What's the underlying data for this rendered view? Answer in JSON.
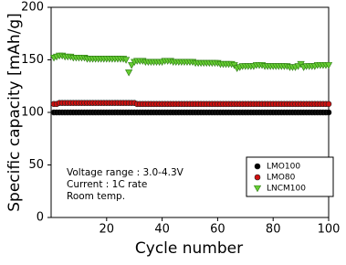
{
  "chart_data": {
    "type": "scatter",
    "xlabel": "Cycle number",
    "ylabel": "Specific capacity [mAh/g]",
    "annotations": [
      "Voltage range : 3.0-4.3V",
      "Current : 1C rate",
      "Room temp."
    ],
    "xlim": [
      0,
      100
    ],
    "xticks": [
      20,
      40,
      60,
      80,
      100
    ],
    "ylim": [
      0,
      200
    ],
    "yticks": [
      0,
      50,
      100,
      150,
      200
    ],
    "legend": "lower right",
    "x": [
      1,
      2,
      3,
      4,
      5,
      6,
      7,
      8,
      9,
      10,
      11,
      12,
      13,
      14,
      15,
      16,
      17,
      18,
      19,
      20,
      21,
      22,
      23,
      24,
      25,
      26,
      27,
      28,
      29,
      30,
      31,
      32,
      33,
      34,
      35,
      36,
      37,
      38,
      39,
      40,
      41,
      42,
      43,
      44,
      45,
      46,
      47,
      48,
      49,
      50,
      51,
      52,
      53,
      54,
      55,
      56,
      57,
      58,
      59,
      60,
      61,
      62,
      63,
      64,
      65,
      66,
      67,
      68,
      69,
      70,
      71,
      72,
      73,
      74,
      75,
      76,
      77,
      78,
      79,
      80,
      81,
      82,
      83,
      84,
      85,
      86,
      87,
      88,
      89,
      90,
      91,
      92,
      93,
      94,
      95,
      96,
      97,
      98,
      99,
      100
    ],
    "series": [
      {
        "name": "LMO100",
        "color": "#000000",
        "marker": "circle",
        "values": [
          100,
          100,
          100,
          100,
          100,
          100,
          100,
          100,
          100,
          100,
          100,
          100,
          100,
          100,
          100,
          100,
          100,
          100,
          100,
          100,
          100,
          100,
          100,
          100,
          100,
          100,
          100,
          100,
          100,
          100,
          100,
          100,
          100,
          100,
          100,
          100,
          100,
          100,
          100,
          100,
          100,
          100,
          100,
          100,
          100,
          100,
          100,
          100,
          100,
          100,
          100,
          100,
          100,
          100,
          100,
          100,
          100,
          100,
          100,
          100,
          100,
          100,
          100,
          100,
          100,
          100,
          100,
          100,
          100,
          100,
          100,
          100,
          100,
          100,
          100,
          100,
          100,
          100,
          100,
          100,
          100,
          100,
          100,
          100,
          100,
          100,
          100,
          100,
          100,
          100,
          100,
          100,
          100,
          100,
          100,
          100,
          100,
          100,
          100,
          100
        ]
      },
      {
        "name": "LMO80",
        "color": "#d01010",
        "marker": "circle",
        "values": [
          108,
          108,
          109,
          109,
          109,
          109,
          109,
          109,
          109,
          109,
          109,
          109,
          109,
          109,
          109,
          109,
          109,
          109,
          109,
          109,
          109,
          109,
          109,
          109,
          109,
          109,
          109,
          109,
          109,
          109,
          108,
          108,
          108,
          108,
          108,
          108,
          108,
          108,
          108,
          108,
          108,
          108,
          108,
          108,
          108,
          108,
          108,
          108,
          108,
          108,
          108,
          108,
          108,
          108,
          108,
          108,
          108,
          108,
          108,
          108,
          108,
          108,
          108,
          108,
          108,
          108,
          108,
          108,
          108,
          108,
          108,
          108,
          108,
          108,
          108,
          108,
          108,
          108,
          108,
          108,
          108,
          108,
          108,
          108,
          108,
          108,
          108,
          108,
          108,
          108,
          108,
          108,
          108,
          108,
          108,
          108,
          108,
          108,
          108,
          108
        ]
      },
      {
        "name": "LNCM100",
        "color": "#66cc33",
        "marker": "triangle-down",
        "values": [
          152,
          153,
          154,
          154,
          153,
          153,
          153,
          152,
          152,
          152,
          152,
          152,
          151,
          151,
          151,
          151,
          151,
          151,
          151,
          151,
          151,
          151,
          151,
          151,
          151,
          151,
          150,
          138,
          145,
          148,
          149,
          149,
          149,
          148,
          148,
          148,
          148,
          148,
          148,
          148,
          149,
          149,
          149,
          148,
          148,
          148,
          148,
          148,
          148,
          148,
          148,
          147,
          147,
          147,
          147,
          147,
          147,
          147,
          147,
          147,
          146,
          146,
          146,
          146,
          146,
          145,
          142,
          143,
          144,
          144,
          144,
          144,
          144,
          145,
          145,
          145,
          144,
          144,
          144,
          144,
          144,
          144,
          144,
          144,
          144,
          143,
          143,
          143,
          144,
          146,
          143,
          144,
          144,
          144,
          144,
          145,
          145,
          145,
          145,
          145
        ]
      }
    ]
  }
}
